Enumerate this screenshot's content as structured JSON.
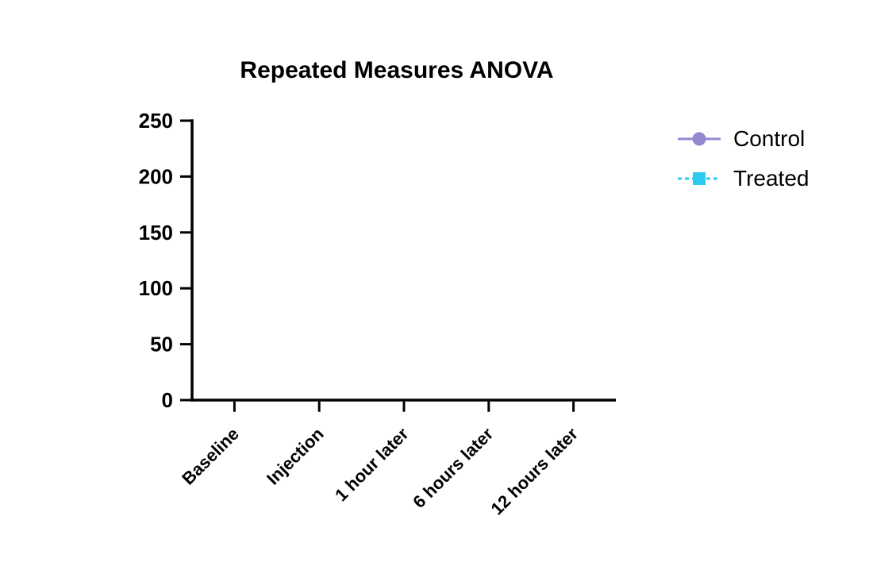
{
  "page": {
    "background": "#ffffff"
  },
  "chart_data": {
    "type": "line",
    "title": "Repeated Measures ANOVA",
    "categories": [
      "Baseline",
      "Injection",
      "1 hour later",
      "6 hours later",
      "12 hours later"
    ],
    "series": [
      {
        "name": "Control",
        "marker": "circle",
        "line_style": "solid",
        "color": "#9588d2",
        "values": []
      },
      {
        "name": "Treated",
        "marker": "square",
        "line_style": "dashed",
        "color": "#2bcbf0",
        "values": []
      }
    ],
    "xlabel": "",
    "ylabel": "",
    "ylim": [
      0,
      250
    ],
    "yticks": [
      0,
      50,
      100,
      150,
      200,
      250
    ],
    "x_tick_label_rotation_deg": 45,
    "grid": false,
    "legend_position": "right-top",
    "axis_color": "#000000",
    "tick_label_color": "#000000"
  }
}
